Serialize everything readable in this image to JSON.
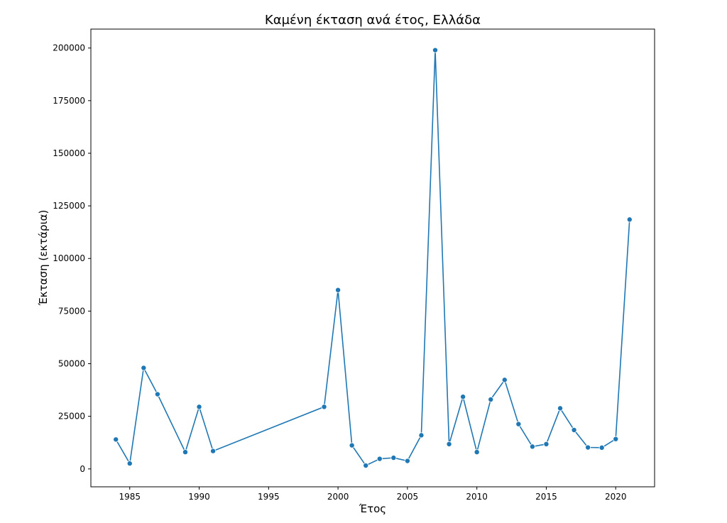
{
  "chart_data": {
    "type": "line",
    "title": "Καμένη έκταση ανά έτος, Ελλάδα",
    "xlabel": "Έτος",
    "ylabel": "Έκταση (εκτάρια)",
    "xlim": [
      1982.2,
      2022.8
    ],
    "ylim": [
      -8500,
      209000
    ],
    "xticks": [
      1985,
      1990,
      1995,
      2000,
      2005,
      2010,
      2015,
      2020
    ],
    "yticks": [
      0,
      25000,
      50000,
      75000,
      100000,
      125000,
      150000,
      175000,
      200000
    ],
    "grid": false,
    "series": [
      {
        "color": "#1f77b4",
        "x": [
          1984,
          1985,
          1986,
          1987,
          1989,
          1990,
          1991,
          1999,
          2000,
          2001,
          2002,
          2003,
          2004,
          2005,
          2006,
          2007,
          2008,
          2009,
          2010,
          2011,
          2012,
          2013,
          2014,
          2015,
          2016,
          2017,
          2018,
          2019,
          2020,
          2021
        ],
        "y": [
          14000,
          2600,
          48000,
          35500,
          8000,
          29500,
          8500,
          29500,
          85000,
          11200,
          1600,
          4800,
          5300,
          3800,
          16000,
          199000,
          11800,
          34300,
          8000,
          33000,
          42300,
          21300,
          10600,
          11800,
          28800,
          18500,
          10200,
          10100,
          14200,
          118500
        ]
      }
    ]
  }
}
